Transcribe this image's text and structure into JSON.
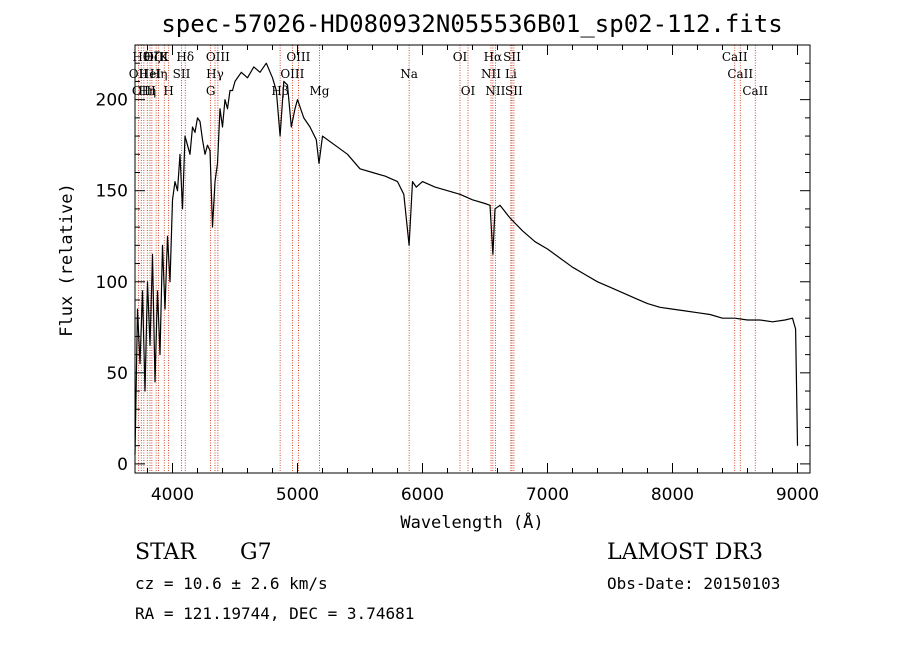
{
  "colors": {
    "background": "#ffffff",
    "axes": "#000000",
    "spectrum": "#000000",
    "line_markers": "#cc2200"
  },
  "chart_data": {
    "type": "line",
    "title": "spec-57026-HD080932N055536B01_sp02-112.fits",
    "xlabel": "Wavelength (Å)",
    "ylabel": "Flux (relative)",
    "xlim": [
      3700,
      9100
    ],
    "ylim": [
      -5,
      230
    ],
    "xticks": [
      {
        "value": 4000,
        "label": "4000"
      },
      {
        "value": 5000,
        "label": "5000"
      },
      {
        "value": 6000,
        "label": "6000"
      },
      {
        "value": 7000,
        "label": "7000"
      },
      {
        "value": 8000,
        "label": "8000"
      },
      {
        "value": 9000,
        "label": "9000"
      }
    ],
    "yticks": [
      {
        "value": 0,
        "label": "0"
      },
      {
        "value": 50,
        "label": "50"
      },
      {
        "value": 100,
        "label": "100"
      },
      {
        "value": 150,
        "label": "150"
      },
      {
        "value": 200,
        "label": "200"
      }
    ],
    "series": [
      {
        "name": "spectrum",
        "x": [
          3700,
          3720,
          3740,
          3760,
          3780,
          3800,
          3820,
          3840,
          3860,
          3880,
          3900,
          3920,
          3940,
          3960,
          3980,
          4000,
          4020,
          4040,
          4060,
          4080,
          4100,
          4120,
          4140,
          4160,
          4180,
          4200,
          4220,
          4240,
          4260,
          4280,
          4300,
          4320,
          4340,
          4360,
          4380,
          4400,
          4420,
          4440,
          4460,
          4480,
          4500,
          4550,
          4600,
          4650,
          4700,
          4750,
          4800,
          4830,
          4861,
          4890,
          4920,
          4950,
          4980,
          5000,
          5050,
          5100,
          5150,
          5172,
          5200,
          5300,
          5400,
          5500,
          5600,
          5700,
          5800,
          5850,
          5893,
          5920,
          5950,
          6000,
          6100,
          6200,
          6300,
          6400,
          6500,
          6540,
          6563,
          6580,
          6620,
          6700,
          6800,
          6900,
          7000,
          7100,
          7200,
          7300,
          7400,
          7500,
          7600,
          7700,
          7800,
          7900,
          8000,
          8100,
          8200,
          8300,
          8400,
          8500,
          8600,
          8700,
          8800,
          8900,
          8960,
          8985,
          9000
        ],
        "y": [
          5,
          85,
          55,
          95,
          40,
          100,
          65,
          115,
          45,
          95,
          60,
          120,
          85,
          125,
          100,
          145,
          155,
          150,
          170,
          140,
          180,
          175,
          170,
          185,
          182,
          190,
          188,
          178,
          170,
          175,
          172,
          130,
          155,
          165,
          195,
          185,
          200,
          195,
          205,
          205,
          210,
          215,
          212,
          218,
          215,
          220,
          212,
          205,
          180,
          210,
          208,
          185,
          195,
          200,
          190,
          185,
          178,
          165,
          180,
          175,
          170,
          162,
          160,
          158,
          155,
          148,
          120,
          155,
          152,
          155,
          152,
          150,
          148,
          145,
          143,
          142,
          115,
          140,
          142,
          135,
          128,
          122,
          118,
          113,
          108,
          104,
          100,
          97,
          94,
          91,
          88,
          86,
          85,
          84,
          83,
          82,
          80,
          80,
          79,
          79,
          78,
          79,
          80,
          74,
          10
        ]
      }
    ],
    "line_markers": [
      {
        "x": 3727,
        "label": "OII",
        "label_row": 2
      },
      {
        "x": 3750,
        "label": "Hθ",
        "label_row": 1
      },
      {
        "x": 3771,
        "label": "OIII",
        "label_row": 3
      },
      {
        "x": 3798,
        "label": "Hη",
        "label_row": 3
      },
      {
        "x": 3820,
        "label": "HeI",
        "label_row": 2
      },
      {
        "x": 3835,
        "label": "Hζ",
        "label_row": 1
      },
      {
        "x": 3869,
        "label": "OIII",
        "label_row": 1
      },
      {
        "x": 3889,
        "label": "Hη",
        "label_row": 2
      },
      {
        "x": 3934,
        "label": "K",
        "label_row": 1
      },
      {
        "x": 3969,
        "label": "H",
        "label_row": 3
      },
      {
        "x": 4072,
        "label": "SII",
        "label_row": 2
      },
      {
        "x": 4102,
        "label": "Hδ",
        "label_row": 1
      },
      {
        "x": 4305,
        "label": "G",
        "label_row": 3
      },
      {
        "x": 4340,
        "label": "Hγ",
        "label_row": 2
      },
      {
        "x": 4363,
        "label": "OIII",
        "label_row": 1
      },
      {
        "x": 4861,
        "label": "Hβ",
        "label_row": 3
      },
      {
        "x": 4959,
        "label": "OIII",
        "label_row": 2
      },
      {
        "x": 5007,
        "label": "OIII",
        "label_row": 1
      },
      {
        "x": 5176,
        "label": "Mg",
        "label_row": 3
      },
      {
        "x": 5893,
        "label": "Na",
        "label_row": 2
      },
      {
        "x": 6300,
        "label": "OI",
        "label_row": 1
      },
      {
        "x": 6364,
        "label": "OI",
        "label_row": 3
      },
      {
        "x": 6548,
        "label": "NII",
        "label_row": 2
      },
      {
        "x": 6563,
        "label": "Hα",
        "label_row": 1
      },
      {
        "x": 6583,
        "label": "NII",
        "label_row": 3
      },
      {
        "x": 6707,
        "label": "Li",
        "label_row": 2
      },
      {
        "x": 6716,
        "label": "SII",
        "label_row": 1
      },
      {
        "x": 6731,
        "label": "SII",
        "label_row": 3
      },
      {
        "x": 8498,
        "label": "CaII",
        "label_row": 1
      },
      {
        "x": 8542,
        "label": "CaII",
        "label_row": 2
      },
      {
        "x": 8662,
        "label": "CaII",
        "label_row": 3
      }
    ]
  },
  "info": {
    "object_class": "STAR",
    "subclass": "G7",
    "survey": "LAMOST DR3",
    "redshift": "cz = 10.6 ± 2.6 km/s",
    "obs_date": "Obs-Date: 20150103",
    "coords": "RA = 121.19744, DEC =   3.74681"
  }
}
